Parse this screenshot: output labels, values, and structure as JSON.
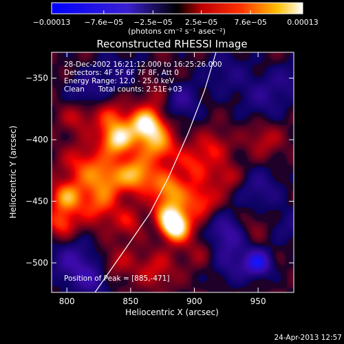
{
  "chart_data": {
    "type": "heatmap",
    "title": "Reconstructed RHESSI Image",
    "xlabel": "Heliocentric X (arcsec)",
    "ylabel": "Heliocentric Y (arcsec)",
    "xlim": [
      788,
      978
    ],
    "ylim": [
      -524,
      -329
    ],
    "x_ticks": [
      800,
      850,
      900,
      950
    ],
    "x_tick_labels": [
      "800",
      "850",
      "900",
      "950"
    ],
    "y_ticks": [
      -350,
      -400,
      -450,
      -500
    ],
    "y_tick_labels": [
      "−350",
      "−400",
      "−450",
      "−500"
    ],
    "colorbar": {
      "min": -0.00013,
      "max": 0.00013,
      "ticks": [
        -0.00013,
        -7.6e-05,
        -2.5e-05,
        2.5e-05,
        7.6e-05,
        0.00013
      ],
      "tick_labels": [
        "−0.00013",
        "−7.6e−05",
        "−2.5e−05",
        "2.5e−05",
        "7.6e−05",
        "0.00013"
      ],
      "unit_label": "(photons cm⁻² s⁻¹ asec⁻²)"
    },
    "annotations": [
      "28-Dec-2002 16:21:12.000 to 16:25:26.000",
      "Detectors: 4F 5F 6F 7F 8F, Att 0",
      "Energy Range: 12.0 - 25.0 keV",
      "Clean      Total counts: 2.51E+03",
      "Position of Peak = [885,-471]"
    ],
    "peak_position": [
      885,
      -471
    ],
    "limb_curve": [
      [
        822,
        -524
      ],
      [
        845,
        -490
      ],
      [
        865,
        -460
      ],
      [
        880,
        -430
      ],
      [
        895,
        -395
      ],
      [
        908,
        -360
      ],
      [
        917,
        -329
      ]
    ],
    "intensity_sources": [
      {
        "x": 800,
        "y": -447,
        "value": 8.5e-05,
        "radius": 9
      },
      {
        "x": 796,
        "y": -468,
        "value": 6e-05,
        "radius": 8
      },
      {
        "x": 812,
        "y": -420,
        "value": 4.5e-05,
        "radius": 12
      },
      {
        "x": 830,
        "y": -432,
        "value": 7e-05,
        "radius": 12
      },
      {
        "x": 808,
        "y": -382,
        "value": 3.5e-05,
        "radius": 9
      },
      {
        "x": 840,
        "y": -400,
        "value": 0.00011,
        "radius": 9
      },
      {
        "x": 835,
        "y": -382,
        "value": 5e-05,
        "radius": 10
      },
      {
        "x": 825,
        "y": -455,
        "value": 5e-05,
        "radius": 11
      },
      {
        "x": 862,
        "y": -388,
        "value": 0.00013,
        "radius": 9
      },
      {
        "x": 872,
        "y": -405,
        "value": 8e-05,
        "radius": 10
      },
      {
        "x": 855,
        "y": -428,
        "value": 9e-05,
        "radius": 10
      },
      {
        "x": 880,
        "y": -440,
        "value": 8e-05,
        "radius": 10
      },
      {
        "x": 880,
        "y": -462,
        "value": 9e-05,
        "radius": 9
      },
      {
        "x": 885,
        "y": -471,
        "value": 0.00013,
        "radius": 8
      },
      {
        "x": 905,
        "y": -450,
        "value": 6e-05,
        "radius": 10
      },
      {
        "x": 900,
        "y": -420,
        "value": 5e-05,
        "radius": 10
      },
      {
        "x": 915,
        "y": -405,
        "value": 4e-05,
        "radius": 9
      },
      {
        "x": 925,
        "y": -430,
        "value": 4e-05,
        "radius": 8
      },
      {
        "x": 850,
        "y": -468,
        "value": 4e-05,
        "radius": 9
      },
      {
        "x": 840,
        "y": -500,
        "value": 3e-05,
        "radius": 10
      },
      {
        "x": 870,
        "y": -505,
        "value": 4e-05,
        "radius": 11
      },
      {
        "x": 905,
        "y": -490,
        "value": 2.5e-05,
        "radius": 10
      },
      {
        "x": 955,
        "y": -400,
        "value": 3.5e-05,
        "radius": 10
      },
      {
        "x": 945,
        "y": -470,
        "value": 2.5e-05,
        "radius": 9
      },
      {
        "x": 870,
        "y": -365,
        "value": 2.5e-05,
        "radius": 9
      },
      {
        "x": 952,
        "y": -440,
        "value": -4e-05,
        "radius": 12
      },
      {
        "x": 925,
        "y": -475,
        "value": -6e-05,
        "radius": 11
      },
      {
        "x": 930,
        "y": -500,
        "value": -4e-05,
        "radius": 12
      },
      {
        "x": 950,
        "y": -500,
        "value": -0.00011,
        "radius": 7
      },
      {
        "x": 955,
        "y": -365,
        "value": -4e-05,
        "radius": 13
      },
      {
        "x": 925,
        "y": -345,
        "value": -3e-05,
        "radius": 13
      },
      {
        "x": 890,
        "y": -368,
        "value": -5e-05,
        "radius": 10
      },
      {
        "x": 840,
        "y": -345,
        "value": -3e-05,
        "radius": 12
      },
      {
        "x": 815,
        "y": -360,
        "value": -4e-05,
        "radius": 10
      },
      {
        "x": 805,
        "y": -500,
        "value": -6e-05,
        "radius": 12
      },
      {
        "x": 820,
        "y": -515,
        "value": -5e-05,
        "radius": 9
      },
      {
        "x": 870,
        "y": -470,
        "value": -3e-05,
        "radius": 8
      },
      {
        "x": 975,
        "y": -470,
        "value": -3e-05,
        "radius": 10
      },
      {
        "x": 975,
        "y": -350,
        "value": -3e-05,
        "radius": 9
      }
    ]
  },
  "footer": {
    "timestamp": "24-Apr-2013 12:57"
  }
}
